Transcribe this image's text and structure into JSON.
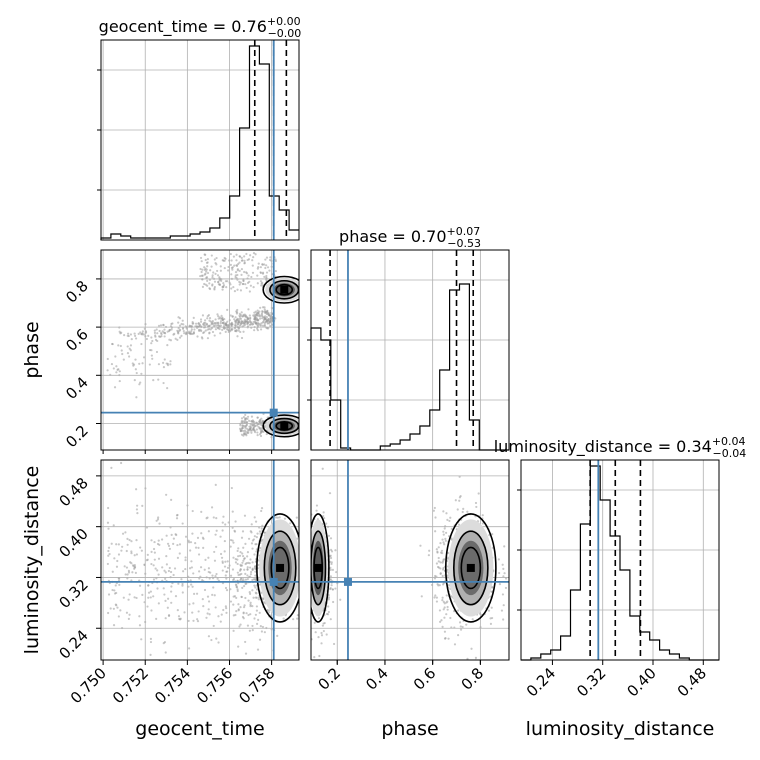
{
  "chart_data": {
    "type": "corner",
    "colors": {
      "truth": "#4682b4",
      "hist": "#000000",
      "grid": "#b0b0b0",
      "scatter": "#9a9a9a"
    },
    "grid": true,
    "parameters": [
      "geocent_time",
      "phase",
      "luminosity_distance"
    ],
    "truths": {
      "geocent_time": 0.7581,
      "phase": 0.245,
      "luminosity_distance": 0.313
    },
    "titles": [
      {
        "param": "geocent_time",
        "text": "geocent_time = 0.76",
        "plus": "+0.00",
        "minus": "−0.00"
      },
      {
        "param": "phase",
        "text": "phase = 0.70",
        "plus": "+0.07",
        "minus": "−0.53"
      },
      {
        "param": "luminosity_distance",
        "text": "luminosity_distance = 0.34",
        "plus": "+0.04",
        "minus": "−0.04"
      }
    ],
    "axis_labels": {
      "geocent_time": "geocent_time",
      "phase": "phase",
      "luminosity_distance": "luminosity_distance"
    },
    "ranges": {
      "geocent_time": [
        0.7499,
        0.7593
      ],
      "phase": [
        0.09,
        0.92
      ],
      "luminosity_distance": [
        0.19,
        0.505
      ]
    },
    "ticks": {
      "geocent_time": {
        "values": [
          0.75,
          0.752,
          0.754,
          0.756,
          0.758
        ],
        "labels": [
          "0.750",
          "0.752",
          "0.754",
          "0.756",
          "0.758"
        ]
      },
      "phase": {
        "values": [
          0.2,
          0.4,
          0.6,
          0.8
        ],
        "labels": [
          "0.2",
          "0.4",
          "0.6",
          "0.8"
        ]
      },
      "luminosity_distance": {
        "values": [
          0.24,
          0.32,
          0.4,
          0.48
        ],
        "labels": [
          "0.24",
          "0.32",
          "0.40",
          "0.48"
        ]
      }
    },
    "quantiles": {
      "geocent_time": [
        0.7572,
        0.7581,
        0.7587
      ],
      "phase": [
        0.17,
        0.7,
        0.77
      ],
      "luminosity_distance": [
        0.3,
        0.34,
        0.38
      ]
    },
    "histograms": {
      "geocent_time": {
        "x_start": 0.7499,
        "bin_width": 0.00047,
        "counts": [
          0.01,
          0.03,
          0.02,
          0.01,
          0.01,
          0.01,
          0.01,
          0.02,
          0.02,
          0.03,
          0.04,
          0.06,
          0.11,
          0.22,
          0.56,
          0.97,
          0.88,
          0.22,
          0.15,
          0.05
        ]
      },
      "phase": {
        "x_start": 0.09,
        "bin_width": 0.0415,
        "counts": [
          0.61,
          0.55,
          0.25,
          0.01,
          0.0,
          0.0,
          0.0,
          0.02,
          0.03,
          0.05,
          0.08,
          0.12,
          0.2,
          0.4,
          0.8,
          0.83,
          0.15,
          0.0,
          0.0,
          0.0
        ]
      },
      "luminosity_distance": {
        "x_start": 0.19,
        "bin_width": 0.01575,
        "counts": [
          0.0,
          0.01,
          0.03,
          0.05,
          0.12,
          0.35,
          0.68,
          0.97,
          0.8,
          0.62,
          0.45,
          0.22,
          0.14,
          0.1,
          0.05,
          0.03,
          0.01,
          0.0,
          0.0,
          0.0
        ]
      }
    }
  }
}
